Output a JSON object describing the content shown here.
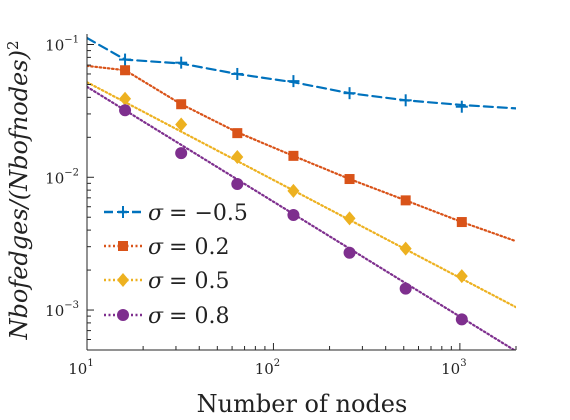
{
  "chart_data": {
    "type": "line",
    "xlabel": "Number of nodes",
    "ylabel": "Nbofedges/(Nbofnodes)",
    "ylabel_exponent": "2",
    "x_scale": "log",
    "y_scale": "log",
    "xlim": [
      10,
      2000
    ],
    "ylim": [
      0.0005,
      0.12
    ],
    "x_ticks": [
      {
        "value": 10,
        "base": "10",
        "exp": "1"
      },
      {
        "value": 100,
        "base": "10",
        "exp": "2"
      },
      {
        "value": 1000,
        "base": "10",
        "exp": "3"
      }
    ],
    "y_ticks": [
      {
        "value": 0.1,
        "base": "10",
        "exp": "−1"
      },
      {
        "value": 0.01,
        "base": "10",
        "exp": "−2"
      },
      {
        "value": 0.001,
        "base": "10",
        "exp": "−3"
      }
    ],
    "grid": false,
    "legend_position": "bottom-left",
    "series": [
      {
        "name": "σ = −0.5",
        "sym": "σ",
        "val": "= −0.5",
        "color": "#0072BD",
        "line_style": "dashed",
        "marker": "plus",
        "fit": {
          "x": [
            10,
            16,
            32,
            64,
            128,
            256,
            512,
            1024,
            2000
          ],
          "y": [
            0.112,
            0.077,
            0.072,
            0.06,
            0.052,
            0.043,
            0.038,
            0.035,
            0.033
          ]
        },
        "x": [
          16,
          32,
          64,
          128,
          256,
          512,
          1024
        ],
        "y": [
          0.077,
          0.073,
          0.06,
          0.053,
          0.043,
          0.038,
          0.034
        ]
      },
      {
        "name": "σ = 0.2",
        "sym": "σ",
        "val": "= 0.2",
        "color": "#D95319",
        "line_style": "dotted",
        "marker": "square",
        "fit": {
          "x": [
            10,
            16,
            32,
            64,
            128,
            256,
            512,
            1024,
            2000
          ],
          "y": [
            0.069,
            0.064,
            0.0355,
            0.0218,
            0.0145,
            0.0097,
            0.0067,
            0.0046,
            0.0033
          ]
        },
        "x": [
          16,
          32,
          64,
          128,
          256,
          512,
          1024
        ],
        "y": [
          0.064,
          0.0355,
          0.0215,
          0.0145,
          0.0097,
          0.0067,
          0.0046
        ]
      },
      {
        "name": "σ = 0.5",
        "sym": "σ",
        "val": "= 0.5",
        "color": "#EDB120",
        "line_style": "dotted",
        "marker": "diamond",
        "fit": {
          "x": [
            10,
            2000
          ],
          "y": [
            0.052,
            0.00105
          ]
        },
        "x": [
          16,
          32,
          64,
          128,
          256,
          512,
          1024
        ],
        "y": [
          0.039,
          0.025,
          0.0142,
          0.0079,
          0.0049,
          0.0029,
          0.0018
        ]
      },
      {
        "name": "σ = 0.8",
        "sym": "σ",
        "val": "= 0.8",
        "color": "#7E2F8E",
        "line_style": "dotted",
        "marker": "circle",
        "fit": {
          "x": [
            10,
            2000
          ],
          "y": [
            0.048,
            0.00049
          ]
        },
        "x": [
          16,
          32,
          64,
          128,
          256,
          512,
          1024
        ],
        "y": [
          0.032,
          0.0152,
          0.0089,
          0.0052,
          0.0027,
          0.00145,
          0.00085
        ]
      }
    ]
  }
}
